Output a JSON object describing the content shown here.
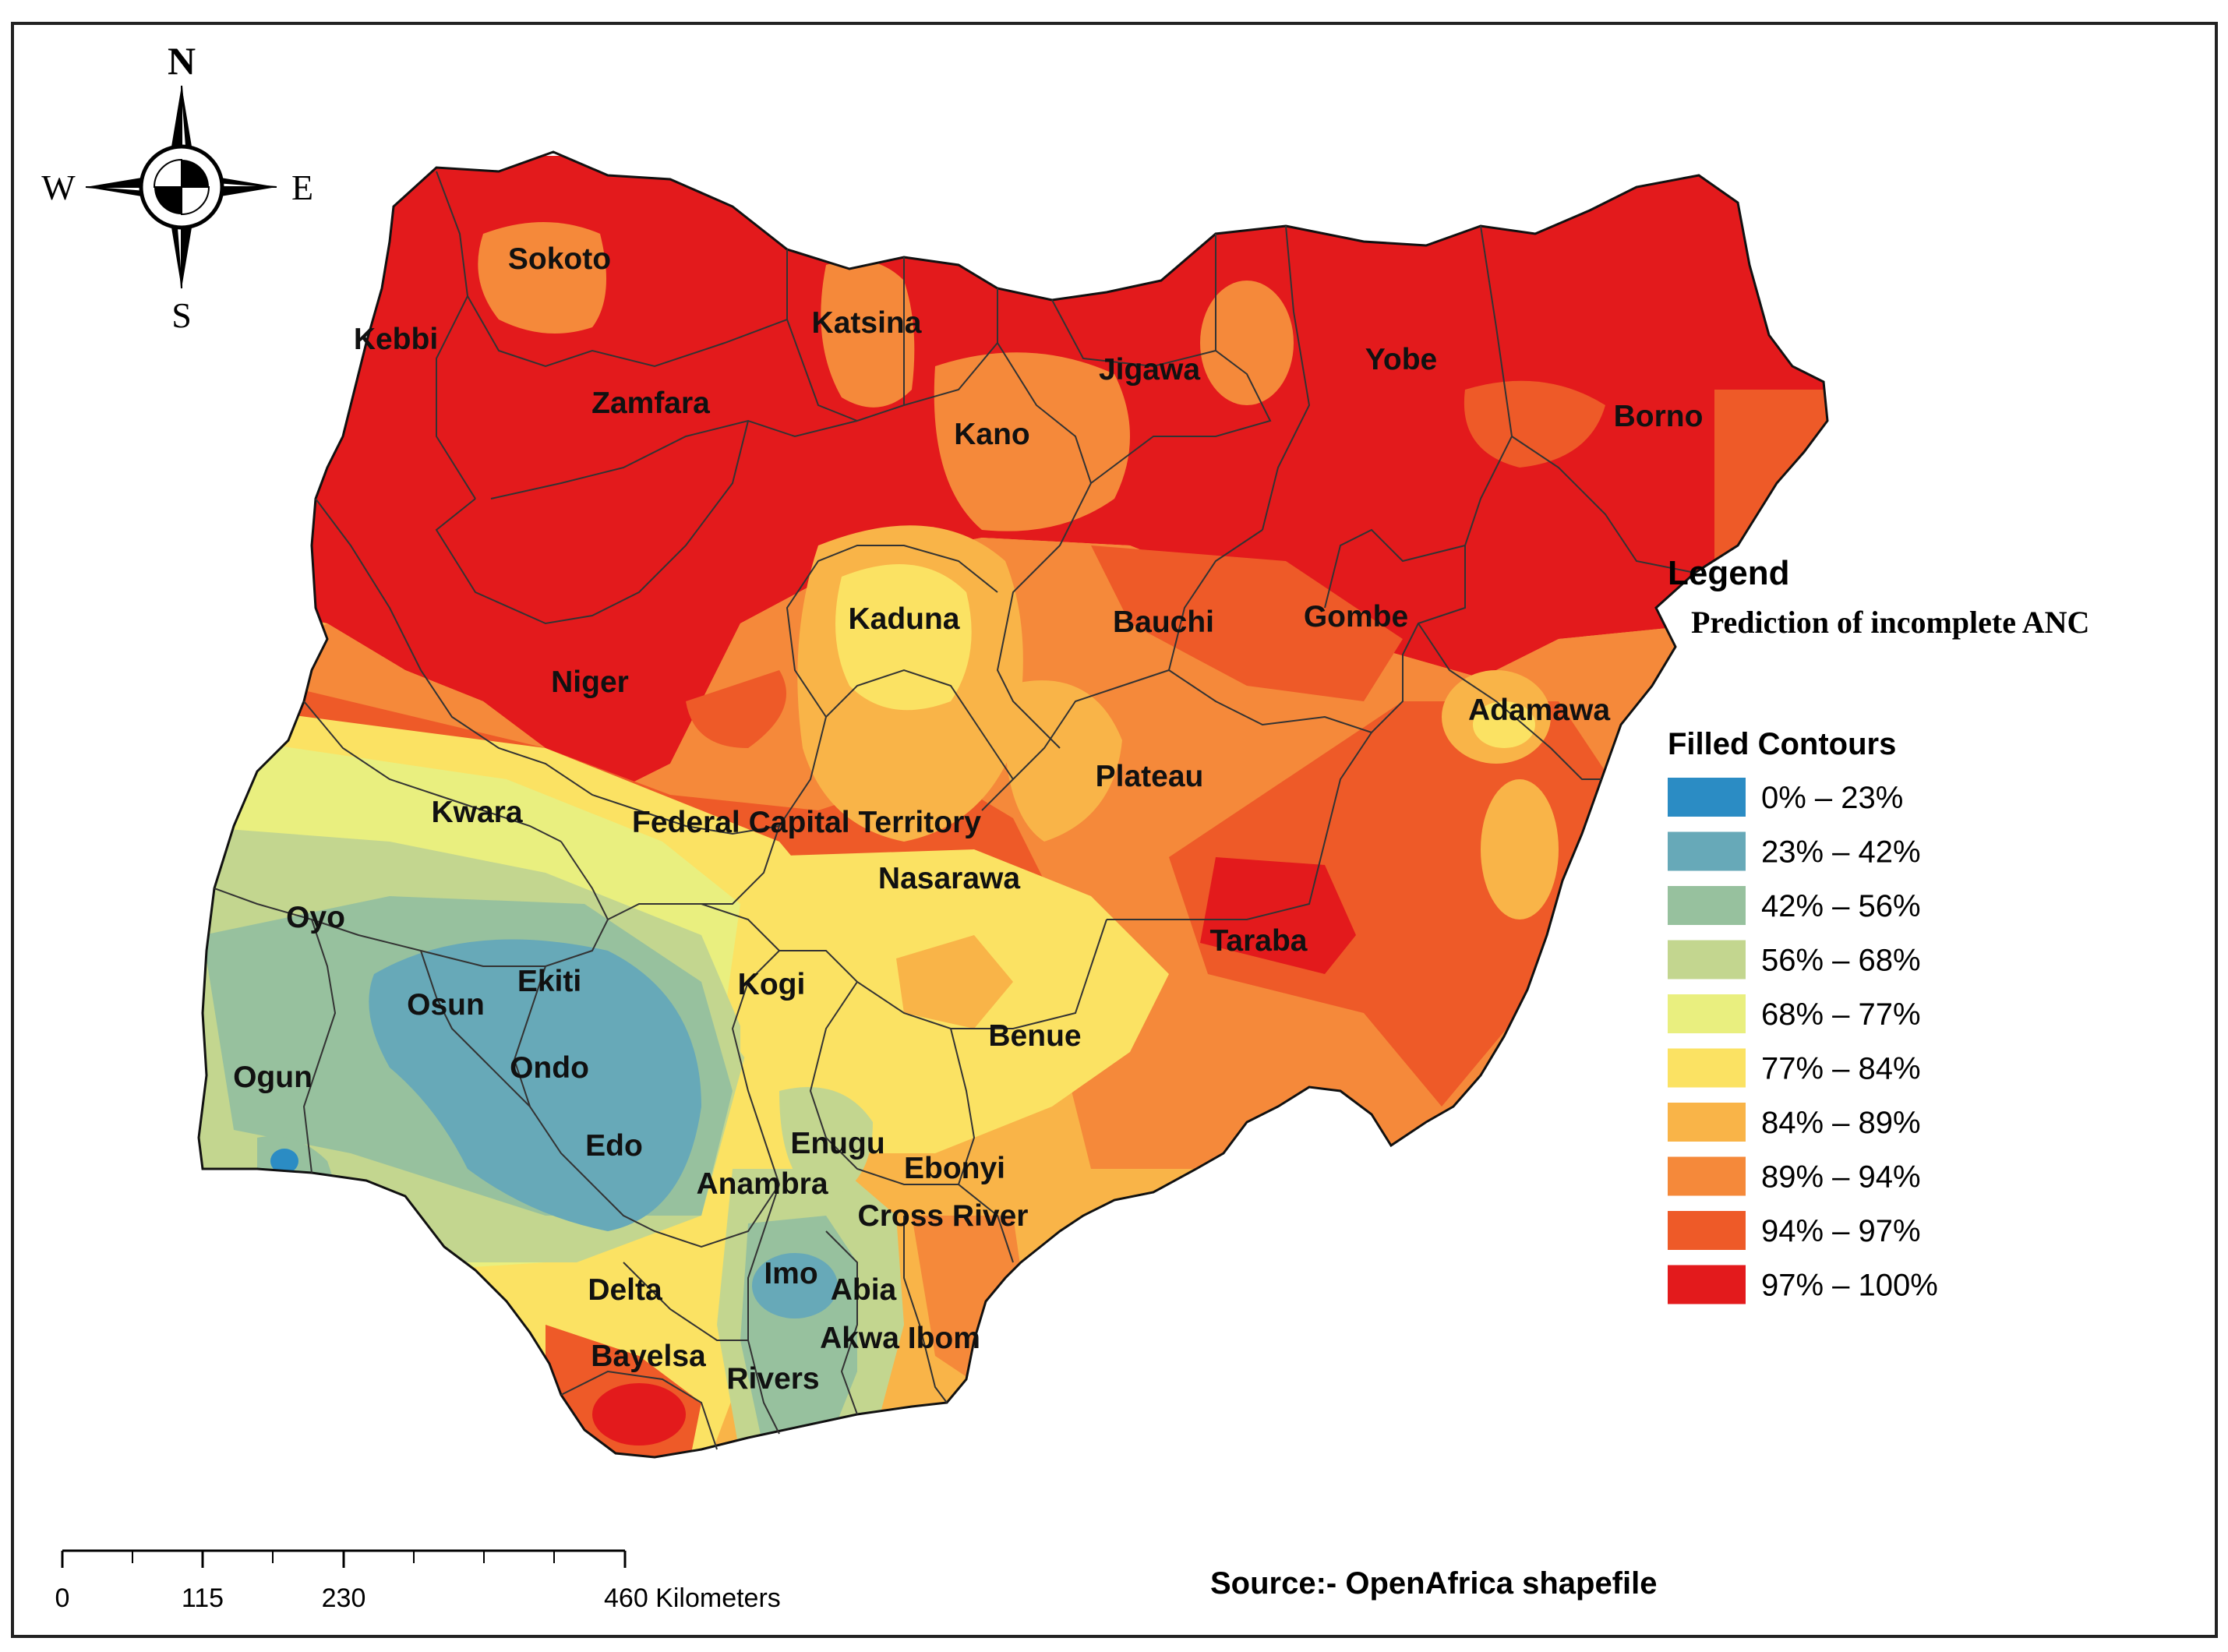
{
  "compass": {
    "north": "N",
    "south": "S",
    "east": "E",
    "west": "W"
  },
  "legend": {
    "heading": "Legend",
    "subtitle": "Prediction of incomplete ANC",
    "section": "Filled Contours",
    "classes": [
      {
        "label": "0% – 23%",
        "color": "#2b8cc4"
      },
      {
        "label": "23% – 42%",
        "color": "#67a9b8"
      },
      {
        "label": "42% – 56%",
        "color": "#97c19e"
      },
      {
        "label": "56% – 68%",
        "color": "#c3d68f"
      },
      {
        "label": "68% – 77%",
        "color": "#e9ef7f"
      },
      {
        "label": "77% – 84%",
        "color": "#fbe263"
      },
      {
        "label": "84% – 89%",
        "color": "#f9b448"
      },
      {
        "label": "89% – 94%",
        "color": "#f5893a"
      },
      {
        "label": "94% – 97%",
        "color": "#ee5a28"
      },
      {
        "label": "97% – 100%",
        "color": "#e31a1c"
      }
    ]
  },
  "states": [
    "Sokoto",
    "Kebbi",
    "Katsina",
    "Zamfara",
    "Jigawa",
    "Yobe",
    "Kano",
    "Borno",
    "Kaduna",
    "Bauchi",
    "Gombe",
    "Niger",
    "Adamawa",
    "Plateau",
    "Kwara",
    "Federal Capital Territory",
    "Nasarawa",
    "Oyo",
    "Taraba",
    "Ekiti",
    "Osun",
    "Kogi",
    "Benue",
    "Ondo",
    "Ogun",
    "Edo",
    "Enugu",
    "Ebonyi",
    "Anambra",
    "Cross River",
    "Imo",
    "Abia",
    "Delta",
    "Akwa Ibom",
    "Bayelsa",
    "Rivers"
  ],
  "scale_bar": {
    "ticks": [
      "0",
      "115",
      "230",
      "460 Kilometers"
    ]
  },
  "source": "Source:- OpenAfrica shapefile"
}
